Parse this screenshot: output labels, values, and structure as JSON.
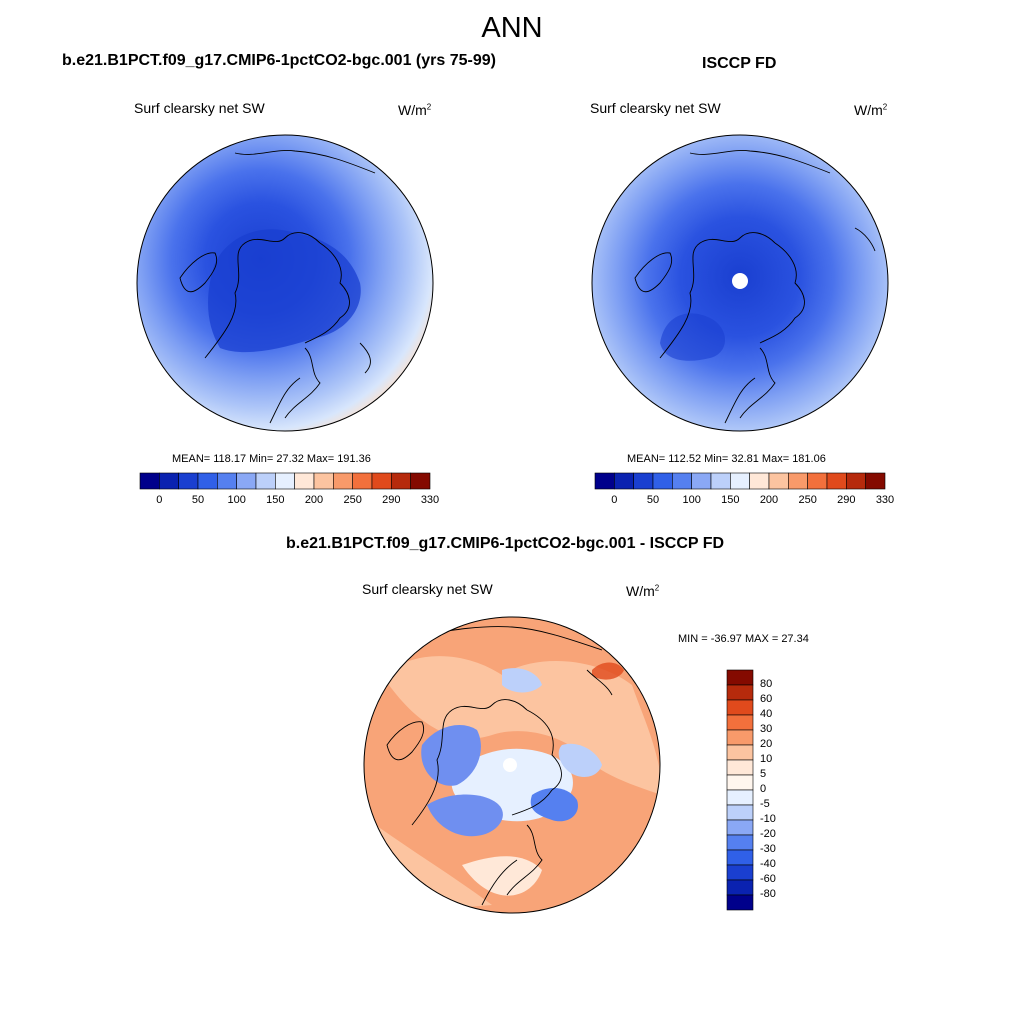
{
  "page": {
    "title": "ANN"
  },
  "panels": [
    {
      "id": "model",
      "title": "b.e21.B1PCT.f09_g17.CMIP6-1pctCO2-bgc.001 (yrs 75-99)",
      "variable": "Surf clearsky net SW",
      "units": "W/m",
      "units_sup": "2",
      "stats": "MEAN= 118.17  Min=  27.32  Max= 191.36",
      "colorbar": {
        "orientation": "horizontal",
        "colors": [
          "#00008b",
          "#0a22b0",
          "#1a3fd0",
          "#3060e8",
          "#5580f0",
          "#8aa8f5",
          "#bcd0fa",
          "#e6f0ff",
          "#ffe8d8",
          "#fcc4a0",
          "#f89a6a",
          "#f2703c",
          "#e04a1c",
          "#b62a0c",
          "#840a00"
        ],
        "ticks": [
          "0",
          "50",
          "100",
          "150",
          "200",
          "250",
          "290",
          "330"
        ]
      },
      "map": {
        "type": "north-polar-stereographic",
        "center_missing": false
      }
    },
    {
      "id": "obs",
      "title": "ISCCP FD",
      "variable": "Surf clearsky net SW",
      "units": "W/m",
      "units_sup": "2",
      "stats": "MEAN= 112.52  Min=  32.81  Max= 181.06",
      "colorbar": {
        "orientation": "horizontal",
        "colors": [
          "#00008b",
          "#0a22b0",
          "#1a3fd0",
          "#3060e8",
          "#5580f0",
          "#8aa8f5",
          "#bcd0fa",
          "#e6f0ff",
          "#ffe8d8",
          "#fcc4a0",
          "#f89a6a",
          "#f2703c",
          "#e04a1c",
          "#b62a0c",
          "#840a00"
        ],
        "ticks": [
          "0",
          "50",
          "100",
          "150",
          "200",
          "250",
          "290",
          "330"
        ]
      },
      "map": {
        "type": "north-polar-stereographic",
        "center_missing": true
      }
    },
    {
      "id": "diff",
      "title": "b.e21.B1PCT.f09_g17.CMIP6-1pctCO2-bgc.001 - ISCCP FD",
      "variable": "Surf clearsky net SW",
      "units": "W/m",
      "units_sup": "2",
      "stats": "MIN = -36.97 MAX =  27.34",
      "colorbar": {
        "orientation": "vertical",
        "colors": [
          "#840a00",
          "#b62a0c",
          "#e04a1c",
          "#f2703c",
          "#f89a6a",
          "#fcc4a0",
          "#ffe8d8",
          "#fff6ee",
          "#e6f0ff",
          "#bcd0fa",
          "#8aa8f5",
          "#5580f0",
          "#3060e8",
          "#1a3fd0",
          "#0a22b0",
          "#00008b"
        ],
        "ticks": [
          "80",
          "60",
          "40",
          "30",
          "20",
          "10",
          "5",
          "0",
          "-5",
          "-10",
          "-20",
          "-30",
          "-40",
          "-60",
          "-80"
        ]
      },
      "map": {
        "type": "north-polar-stereographic",
        "center_missing": true
      }
    }
  ],
  "colors": {
    "ocean_warm": "#fde3cf",
    "diff_warm": "#f8a478",
    "diff_cool": "#6f8ff0",
    "land_line": "#000000"
  }
}
